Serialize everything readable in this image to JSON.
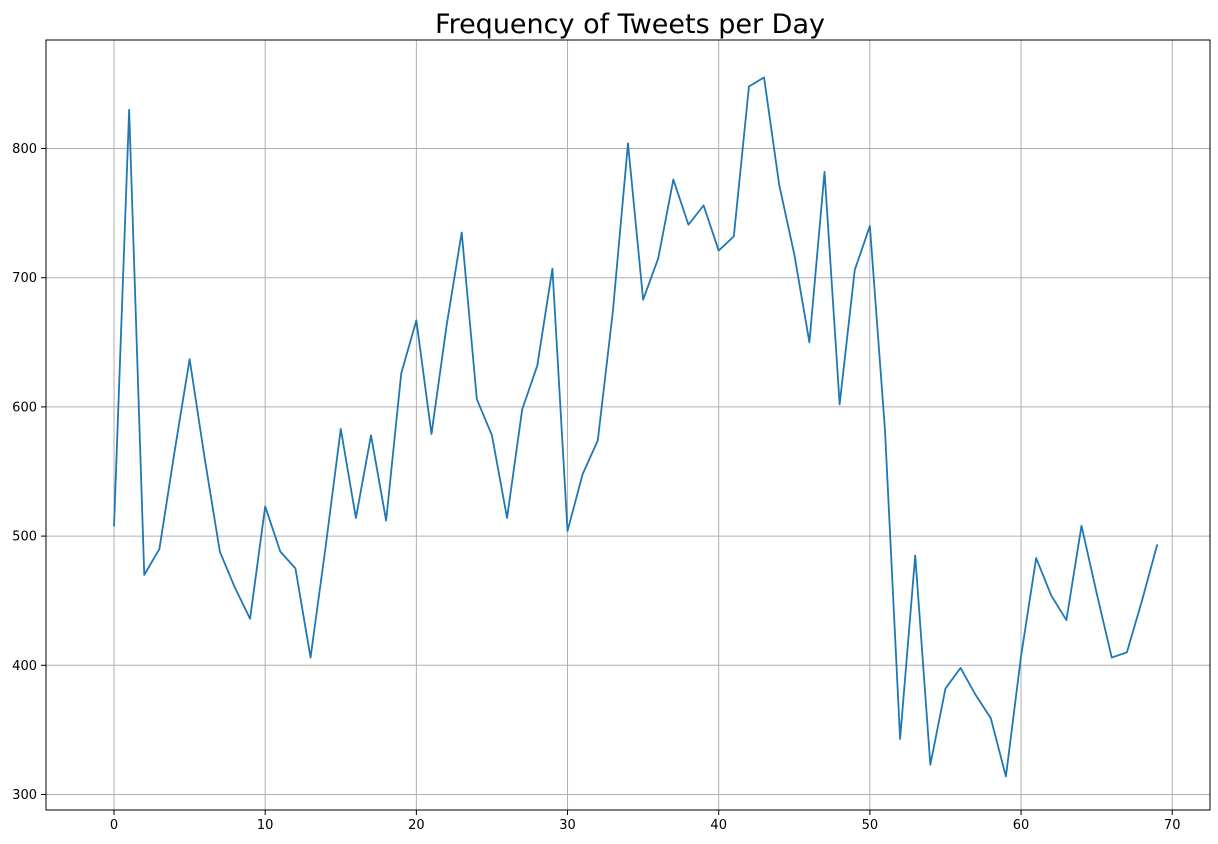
{
  "chart_data": {
    "type": "line",
    "title": "Frequency of Tweets per Day",
    "xlabel": "",
    "ylabel": "",
    "xlim": [
      -4.5,
      72.5
    ],
    "ylim": [
      288,
      884
    ],
    "x_ticks": [
      0,
      10,
      20,
      30,
      40,
      50,
      60,
      70
    ],
    "y_ticks": [
      300,
      400,
      500,
      600,
      700,
      800
    ],
    "grid": true,
    "line_color": "#1f77b4",
    "series": [
      {
        "x": [
          0,
          1,
          2,
          3,
          4,
          5,
          6,
          7,
          8,
          9,
          10,
          11,
          12,
          13,
          14,
          15,
          16,
          17,
          18,
          19,
          20,
          21,
          22,
          23,
          24,
          25,
          26,
          27,
          28,
          29,
          30,
          31,
          32,
          33,
          34,
          35,
          36,
          37,
          38,
          39,
          40,
          41,
          42,
          43,
          44,
          45,
          46,
          47,
          48,
          49,
          50,
          51,
          52,
          53,
          54,
          55,
          56,
          57,
          58,
          59,
          60,
          61,
          62,
          63,
          64,
          65,
          66,
          67,
          68,
          69
        ],
        "values": [
          508,
          830,
          470,
          490,
          565,
          637,
          560,
          488,
          460,
          436,
          523,
          488,
          475,
          406,
          492,
          583,
          514,
          578,
          512,
          626,
          667,
          579,
          663,
          735,
          606,
          578,
          514,
          598,
          632,
          707,
          504,
          548,
          574,
          674,
          804,
          683,
          715,
          776,
          741,
          756,
          721,
          732,
          848,
          855,
          772,
          718,
          650,
          782,
          602,
          706,
          740,
          582,
          343,
          485,
          323,
          382,
          398,
          377,
          359,
          314,
          407,
          483,
          454,
          435,
          508,
          456,
          406,
          410,
          450,
          493
        ]
      }
    ]
  }
}
